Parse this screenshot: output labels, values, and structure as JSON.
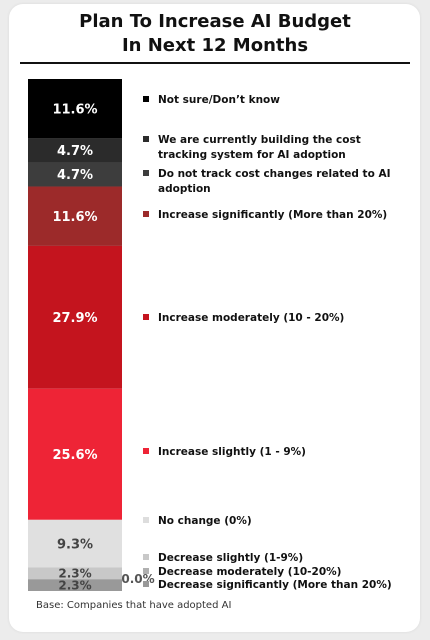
{
  "title_line1": "Plan To Increase AI Budget",
  "title_line2": "In Next 12 Months",
  "base_note": "Base: Companies that have adopted AI",
  "chart_data": {
    "type": "bar",
    "orientation": "stacked-vertical-100",
    "title": "Plan To Increase AI Budget In Next 12 Months",
    "segments": [
      {
        "label": "Not sure/Don’t know",
        "value": 11.6,
        "value_label": "11.6%",
        "color": "#000000"
      },
      {
        "label": "We are currently building the cost tracking system for AI adoption",
        "value": 4.7,
        "value_label": "4.7%",
        "color": "#2b2b2b"
      },
      {
        "label": "Do not track cost changes related to AI adoption",
        "value": 4.7,
        "value_label": "4.7%",
        "color": "#3d3d3d"
      },
      {
        "label": "Increase significantly (More than 20%)",
        "value": 11.6,
        "value_label": "11.6%",
        "color": "#9c2a2a"
      },
      {
        "label": "Increase moderately (10 - 20%)",
        "value": 27.9,
        "value_label": "27.9%",
        "color": "#c4141e"
      },
      {
        "label": "Increase slightly (1 - 9%)",
        "value": 25.6,
        "value_label": "25.6%",
        "color": "#ee2436"
      },
      {
        "label": "No change (0%)",
        "value": 9.3,
        "value_label": "9.3%",
        "color": "#e0e0e0"
      },
      {
        "label": "Decrease slightly (1-9%)",
        "value": 2.3,
        "value_label": "2.3%",
        "color": "#c8c8c8"
      },
      {
        "label": "Decrease moderately (10-20%)",
        "value": 0.0,
        "value_label": "0.0%",
        "color": "#b0b0b0"
      },
      {
        "label": "Decrease significantly (More than 20%)",
        "value": 2.3,
        "value_label": "2.3%",
        "color": "#999999"
      }
    ]
  }
}
